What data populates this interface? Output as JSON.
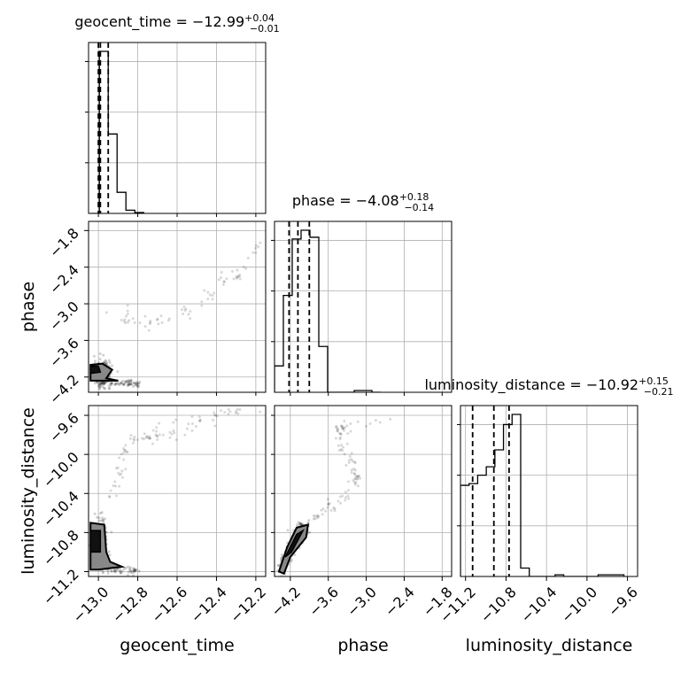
{
  "chart_data": {
    "type": "corner",
    "parameters": [
      {
        "name": "geocent_time",
        "range": [
          -13.05,
          -12.15
        ],
        "ticks": [
          -13.0,
          -12.8,
          -12.6,
          -12.4,
          -12.2
        ],
        "tick_labels": [
          "−13.0",
          "−12.8",
          "−12.6",
          "−12.4",
          "−12.2"
        ],
        "title": {
          "main": "geocent_time = −12.99",
          "plus": "+0.04",
          "minus": "−0.01"
        },
        "quantiles": [
          -13.0,
          -12.99,
          -12.95
        ],
        "hist": {
          "x0": -13.04,
          "bin": 0.045,
          "values": [
            0.0,
            1.0,
            0.49,
            0.13,
            0.02,
            0.005
          ]
        }
      },
      {
        "name": "phase",
        "range": [
          -4.45,
          -1.65
        ],
        "ticks": [
          -4.2,
          -3.6,
          -3.0,
          -2.4,
          -1.8
        ],
        "tick_labels": [
          "−4.2",
          "−3.6",
          "−3.0",
          "−2.4",
          "−1.8"
        ],
        "title": {
          "main": "phase = −4.08",
          "plus": "+0.18",
          "minus": "−0.14"
        },
        "quantiles": [
          -4.22,
          -4.08,
          -3.9
        ],
        "hist": {
          "x0": -4.45,
          "bin": 0.14,
          "values": [
            0.15,
            0.55,
            0.87,
            0.92,
            0.88,
            0.26,
            0.0,
            0.0,
            0.0,
            0.01,
            0.01,
            0.0
          ]
        }
      },
      {
        "name": "luminosity_distance",
        "range": [
          -11.25,
          -9.5
        ],
        "ticks": [
          -11.2,
          -10.8,
          -10.4,
          -10.0,
          -9.6
        ],
        "tick_labels": [
          "−11.2",
          "−10.8",
          "−10.4",
          "−10.0",
          "−9.6"
        ],
        "title": {
          "main": "luminosity_distance = −10.92",
          "plus": "+0.15",
          "minus": "−0.21"
        },
        "quantiles": [
          -11.13,
          -10.92,
          -10.77
        ],
        "hist": {
          "x0": -11.25,
          "bin": 0.085,
          "values": [
            0.54,
            0.55,
            0.6,
            0.65,
            0.75,
            0.9,
            0.96,
            0.05,
            0.0,
            0.0,
            0.0,
            0.01,
            0.0,
            0.0,
            0.0,
            0.0,
            0.01,
            0.01,
            0.01
          ]
        }
      }
    ],
    "grid": true
  }
}
